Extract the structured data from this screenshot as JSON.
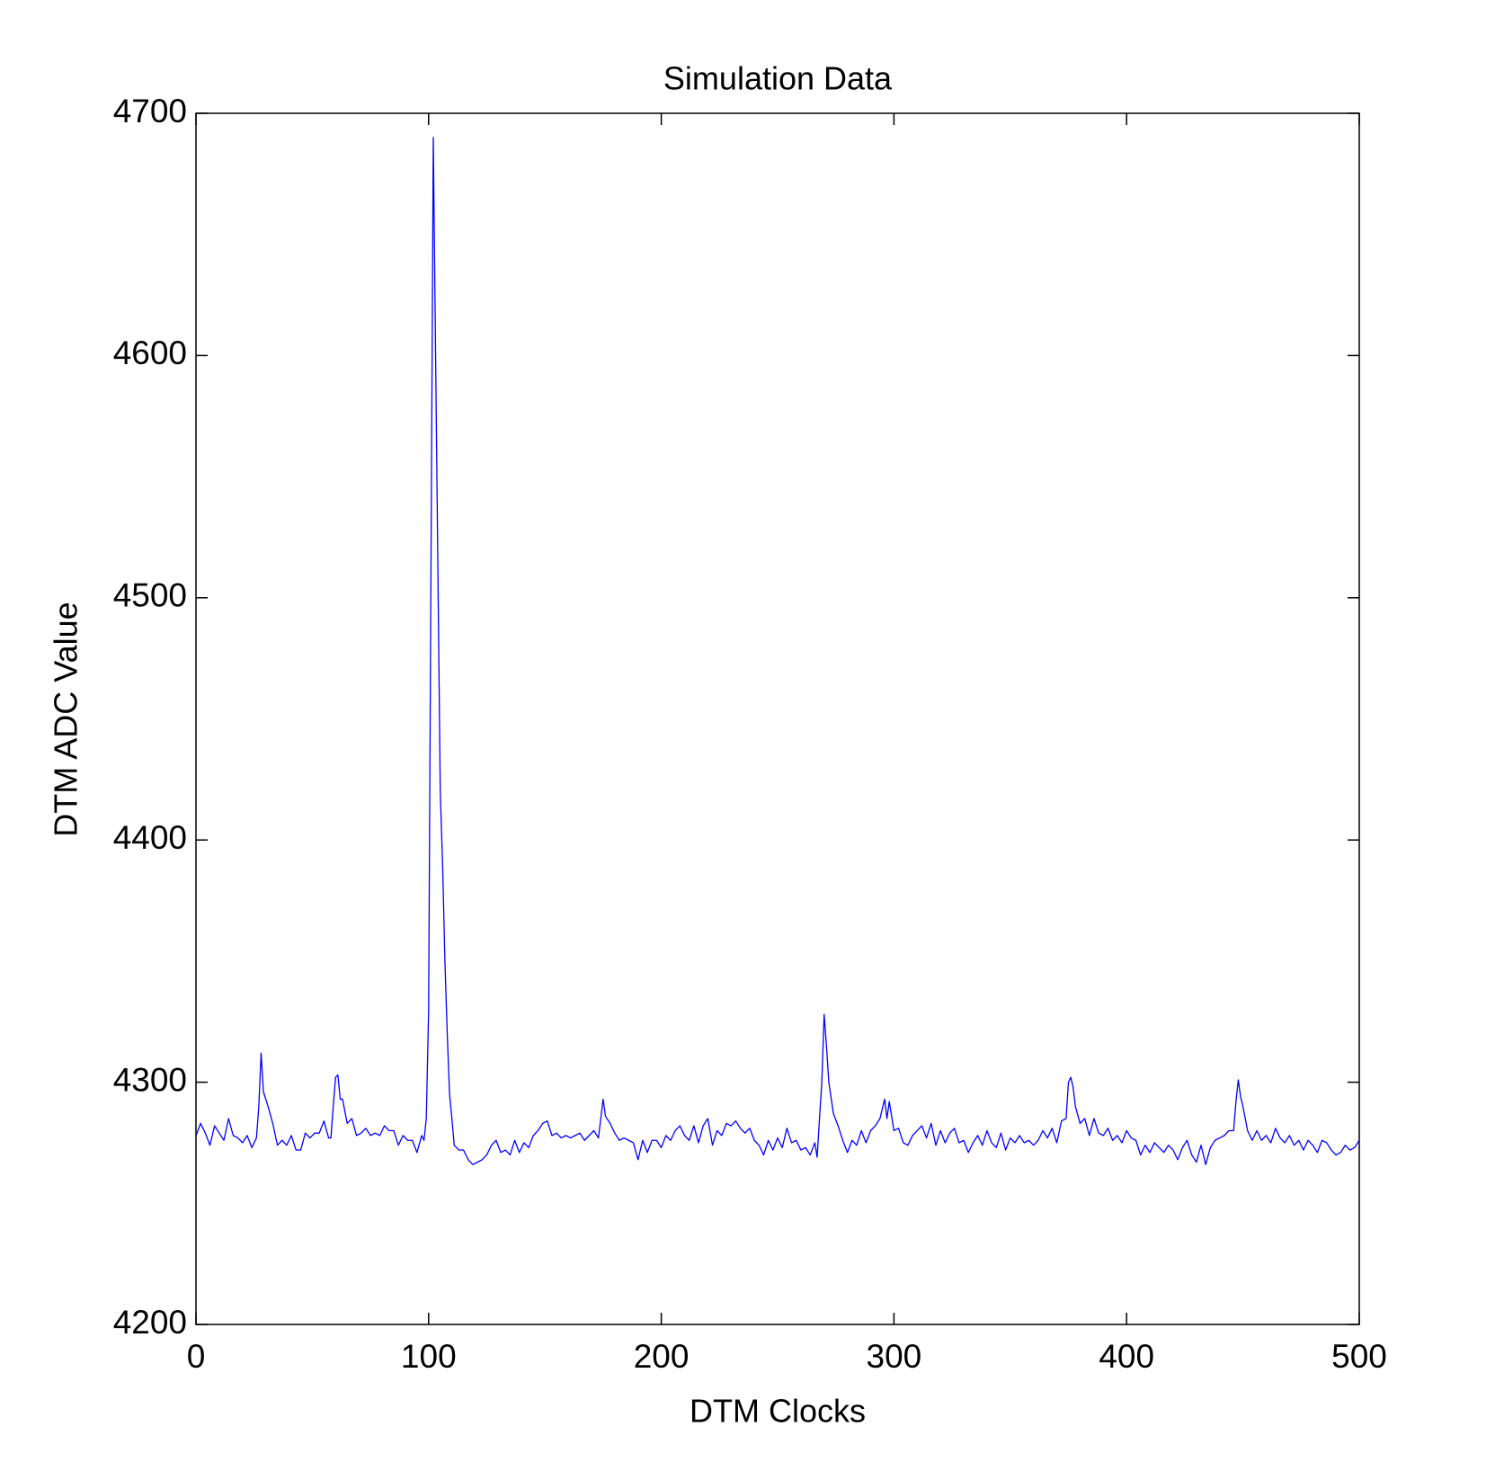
{
  "chart_data": {
    "type": "line",
    "title": "Simulation Data",
    "x_label": "DTM Clocks",
    "y_label": "DTM ADC Value",
    "xlim": [
      0,
      500
    ],
    "xticks": [
      0,
      100,
      200,
      300,
      400,
      500
    ],
    "ylim": [
      4200,
      4700
    ],
    "yticks": [
      4200,
      4300,
      4400,
      4500,
      4600,
      4700
    ],
    "grid": false,
    "x": [
      0,
      2,
      4,
      6,
      8,
      10,
      12,
      14,
      16,
      18,
      20,
      22,
      24,
      26,
      27,
      28,
      29,
      31,
      33,
      35,
      37,
      39,
      41,
      43,
      45,
      47,
      49,
      51,
      53,
      55,
      57,
      58,
      59,
      60,
      61,
      62,
      63,
      65,
      67,
      69,
      71,
      73,
      75,
      77,
      79,
      81,
      83,
      85,
      87,
      89,
      91,
      93,
      95,
      97,
      98,
      99,
      100,
      101,
      102,
      103,
      104,
      105,
      106,
      107,
      108,
      109,
      110,
      111,
      113,
      115,
      117,
      119,
      121,
      123,
      125,
      127,
      129,
      131,
      133,
      135,
      137,
      139,
      141,
      143,
      145,
      147,
      149,
      151,
      153,
      155,
      157,
      159,
      161,
      163,
      165,
      167,
      169,
      171,
      173,
      175,
      176,
      178,
      180,
      182,
      184,
      186,
      188,
      190,
      192,
      194,
      196,
      198,
      200,
      202,
      204,
      206,
      208,
      210,
      212,
      214,
      216,
      218,
      220,
      222,
      224,
      226,
      228,
      230,
      232,
      234,
      236,
      238,
      240,
      242,
      244,
      246,
      248,
      250,
      252,
      254,
      256,
      258,
      260,
      262,
      264,
      266,
      267,
      268,
      269,
      270,
      271,
      272,
      274,
      276,
      278,
      280,
      282,
      284,
      286,
      288,
      290,
      292,
      294,
      296,
      297,
      298,
      300,
      302,
      304,
      306,
      308,
      310,
      312,
      314,
      316,
      318,
      320,
      322,
      324,
      326,
      328,
      330,
      332,
      334,
      336,
      338,
      340,
      342,
      344,
      346,
      348,
      350,
      352,
      354,
      356,
      358,
      360,
      362,
      364,
      366,
      368,
      370,
      372,
      374,
      375,
      376,
      377,
      378,
      380,
      382,
      384,
      386,
      388,
      390,
      392,
      394,
      396,
      398,
      400,
      402,
      404,
      406,
      408,
      410,
      412,
      414,
      416,
      418,
      420,
      422,
      424,
      426,
      428,
      430,
      432,
      434,
      436,
      438,
      440,
      442,
      444,
      446,
      447,
      448,
      449,
      450,
      452,
      454,
      456,
      458,
      460,
      462,
      464,
      466,
      468,
      470,
      472,
      474,
      476,
      478,
      480,
      482,
      484,
      486,
      488,
      490,
      492,
      494,
      496,
      498,
      500
    ],
    "series": [
      {
        "name": "DTM ADC Value",
        "color": "#0000ff",
        "values": [
          4278,
          4283,
          4279,
          4274,
          4282,
          4279,
          4276,
          4285,
          4278,
          4277,
          4275,
          4278,
          4273,
          4277,
          4290,
          4312,
          4296,
          4290,
          4283,
          4274,
          4276,
          4274,
          4278,
          4272,
          4272,
          4279,
          4277,
          4279,
          4279,
          4284,
          4277,
          4277,
          4290,
          4302,
          4303,
          4293,
          4293,
          4283,
          4285,
          4278,
          4279,
          4281,
          4278,
          4279,
          4278,
          4282,
          4280,
          4280,
          4274,
          4278,
          4276,
          4276,
          4271,
          4278,
          4276,
          4285,
          4330,
          4510,
          4690,
          4600,
          4510,
          4420,
          4390,
          4350,
          4320,
          4295,
          4285,
          4274,
          4272,
          4272,
          4268,
          4266,
          4267,
          4268,
          4270,
          4274,
          4276,
          4271,
          4272,
          4270,
          4276,
          4271,
          4275,
          4273,
          4278,
          4280,
          4283,
          4284,
          4278,
          4279,
          4277,
          4278,
          4277,
          4278,
          4279,
          4276,
          4278,
          4280,
          4277,
          4293,
          4286,
          4283,
          4279,
          4276,
          4277,
          4276,
          4275,
          4268,
          4276,
          4271,
          4276,
          4276,
          4273,
          4278,
          4276,
          4280,
          4282,
          4278,
          4276,
          4282,
          4275,
          4282,
          4285,
          4274,
          4280,
          4278,
          4283,
          4282,
          4284,
          4281,
          4279,
          4281,
          4276,
          4274,
          4270,
          4276,
          4272,
          4277,
          4273,
          4281,
          4275,
          4276,
          4272,
          4273,
          4270,
          4275,
          4269,
          4285,
          4300,
          4328,
          4315,
          4300,
          4287,
          4282,
          4276,
          4271,
          4276,
          4274,
          4280,
          4275,
          4280,
          4282,
          4285,
          4293,
          4285,
          4292,
          4280,
          4281,
          4275,
          4274,
          4278,
          4280,
          4282,
          4277,
          4283,
          4274,
          4280,
          4275,
          4279,
          4281,
          4275,
          4276,
          4271,
          4275,
          4278,
          4274,
          4280,
          4275,
          4273,
          4279,
          4272,
          4277,
          4275,
          4278,
          4275,
          4276,
          4274,
          4276,
          4280,
          4277,
          4281,
          4275,
          4284,
          4285,
          4300,
          4302,
          4298,
          4290,
          4283,
          4285,
          4278,
          4285,
          4279,
          4278,
          4281,
          4276,
          4278,
          4275,
          4280,
          4277,
          4276,
          4270,
          4274,
          4271,
          4275,
          4273,
          4271,
          4274,
          4272,
          4268,
          4273,
          4276,
          4270,
          4267,
          4274,
          4266,
          4273,
          4276,
          4277,
          4278,
          4280,
          4280,
          4292,
          4301,
          4294,
          4290,
          4280,
          4276,
          4280,
          4276,
          4278,
          4275,
          4281,
          4277,
          4275,
          4278,
          4274,
          4276,
          4272,
          4276,
          4274,
          4271,
          4276,
          4275,
          4272,
          4270,
          4271,
          4274,
          4272,
          4273,
          4276
        ]
      }
    ]
  }
}
